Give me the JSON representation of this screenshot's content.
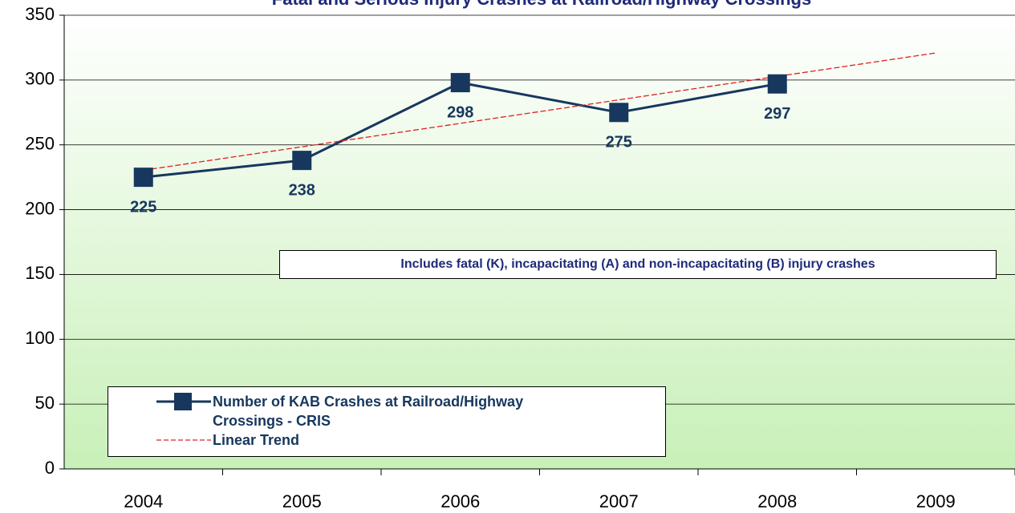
{
  "chart_data": {
    "type": "line",
    "title": "Fatal and Serious Injury Crashes at Railroad/Highway Crossings",
    "annotation": "Includes fatal (K), incapacitating (A) and non-incapacitating (B) injury crashes",
    "categories": [
      "2004",
      "2005",
      "2006",
      "2007",
      "2008",
      "2009"
    ],
    "series": [
      {
        "name": "Number of KAB Crashes at Railroad/Highway Crossings - CRIS",
        "color": "#17375e",
        "values": [
          225,
          238,
          298,
          275,
          297,
          null
        ],
        "marker": "square",
        "show_values": true
      },
      {
        "name": "Linear Trend",
        "color": "#e02020",
        "values": [
          230.4,
          248.5,
          266.6,
          284.7,
          302.8,
          320.9
        ],
        "dashed": true
      }
    ],
    "ylim": [
      0,
      350
    ],
    "yticks": [
      0,
      50,
      100,
      150,
      200,
      250,
      300,
      350
    ],
    "grid": true
  }
}
